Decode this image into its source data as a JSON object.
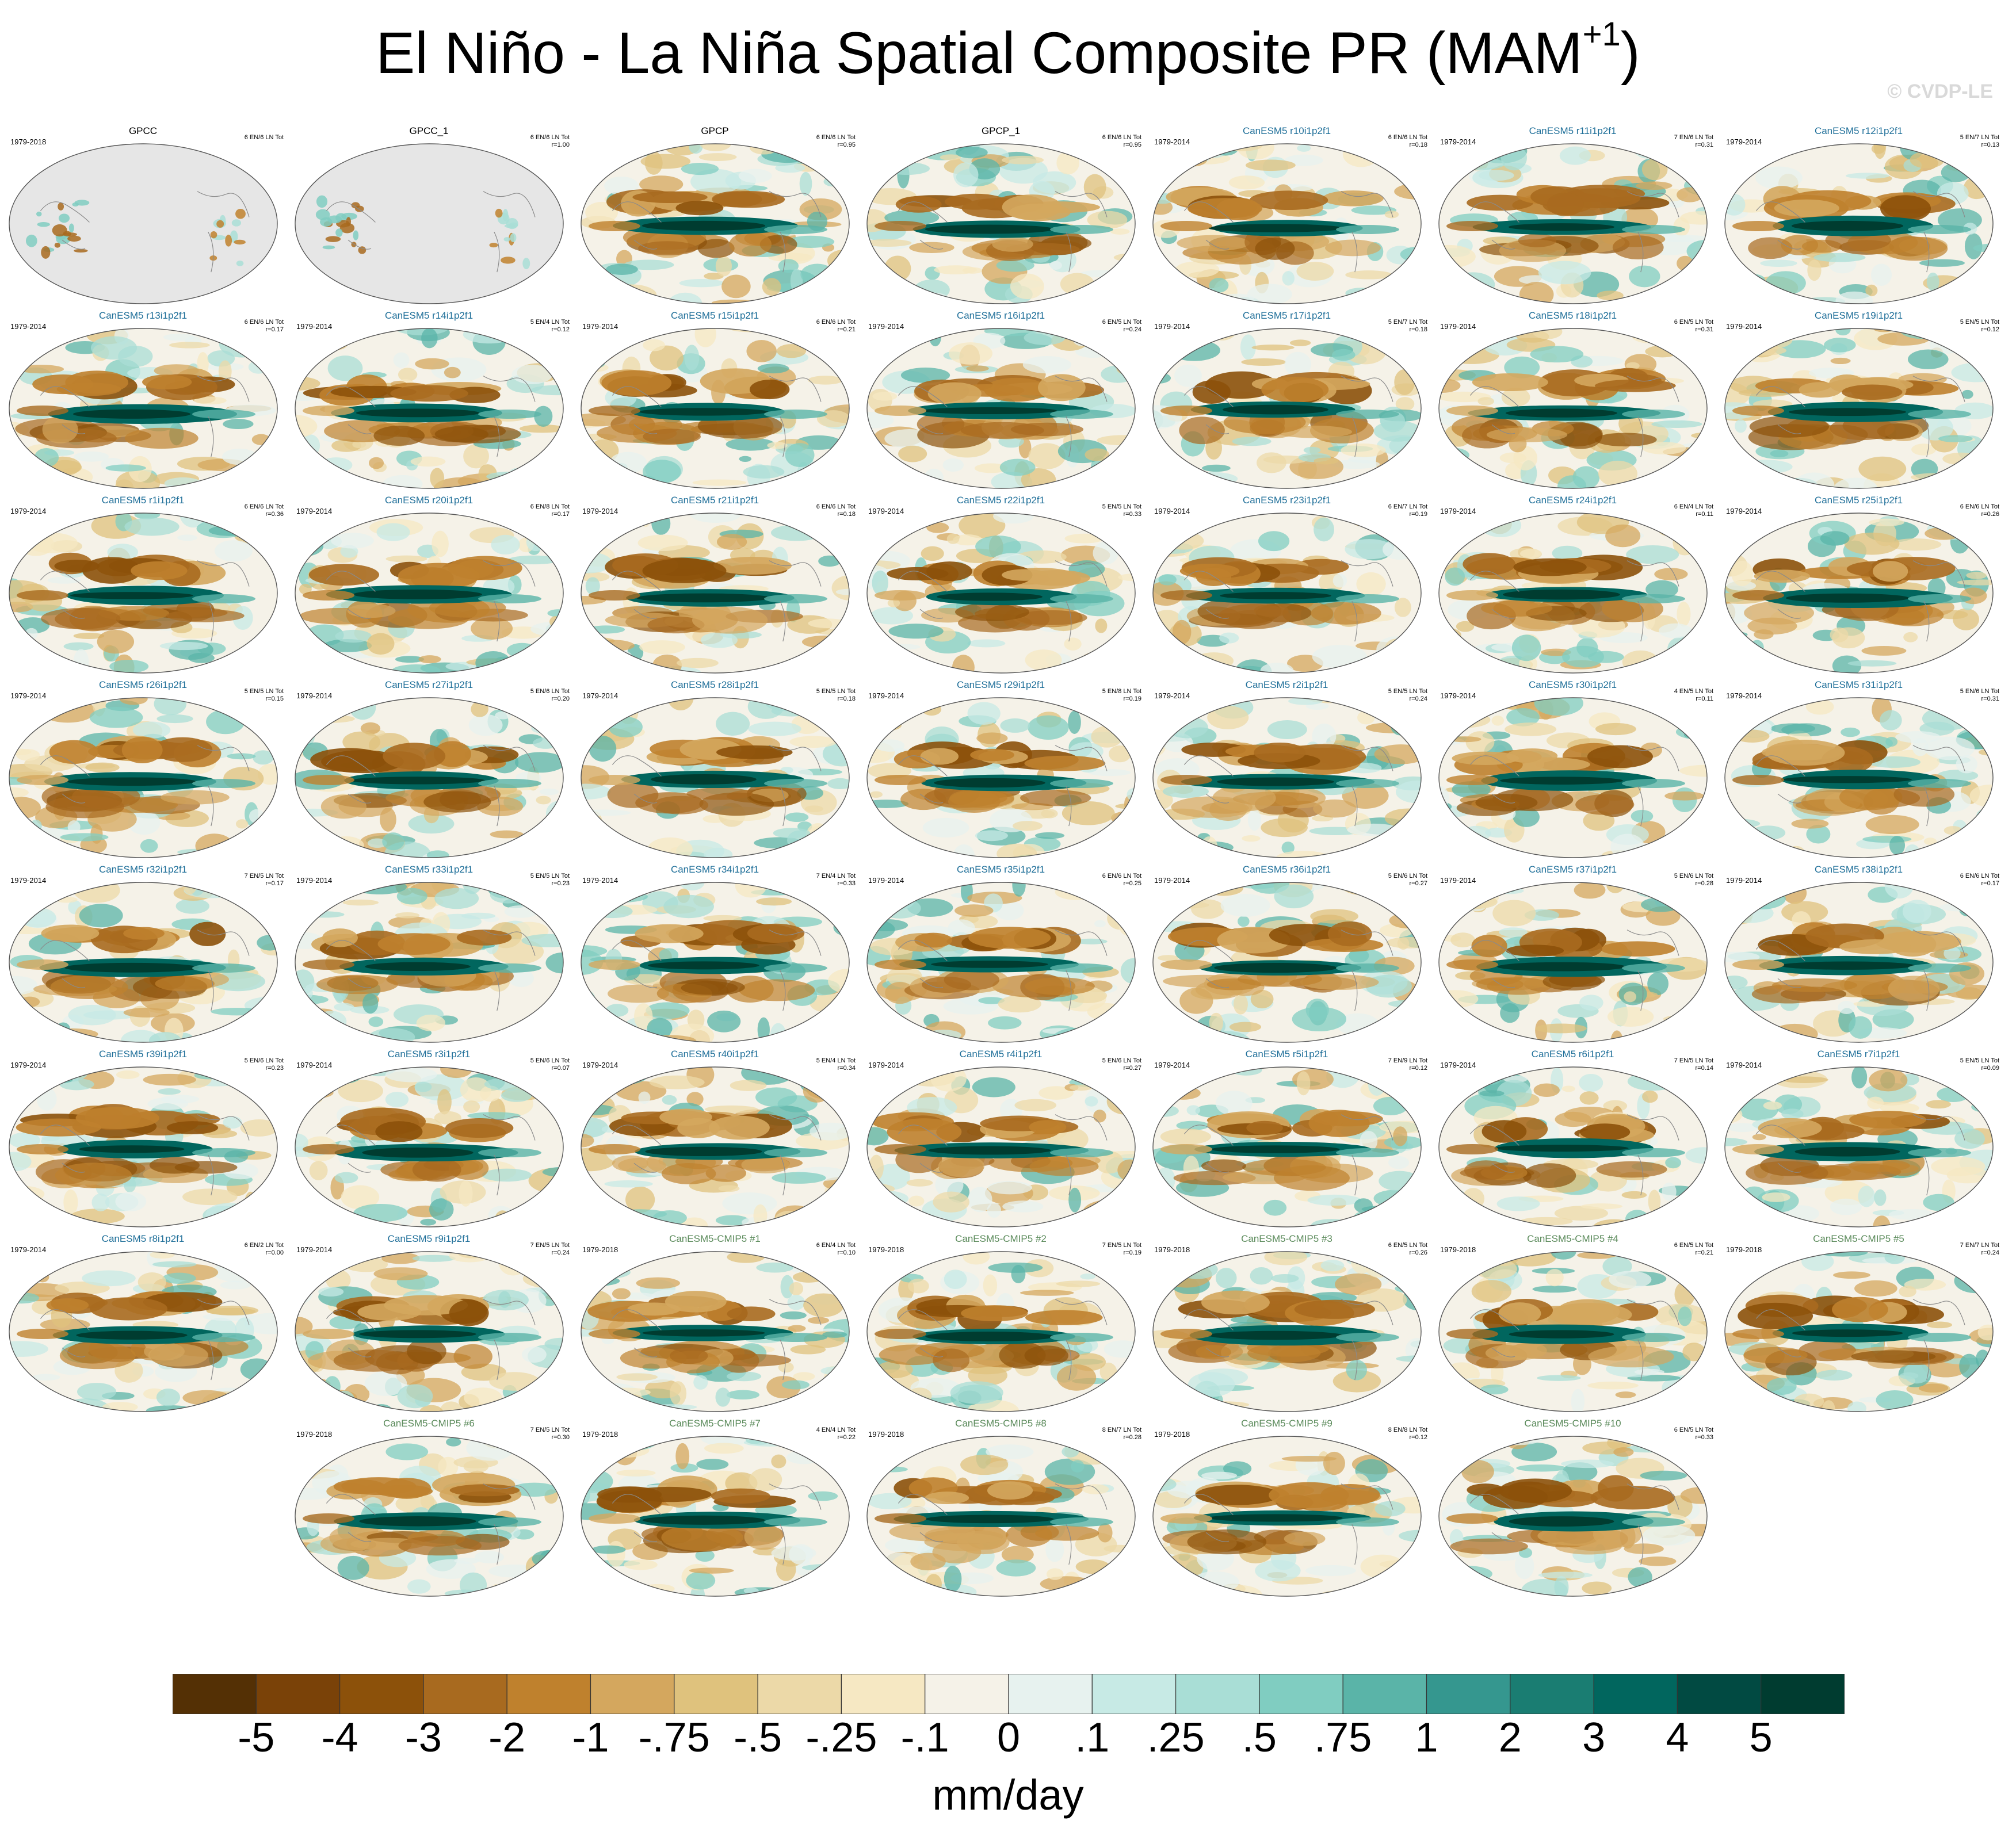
{
  "figure": {
    "title_main": "El Niño - La Niña Spatial Composite PR (MAM",
    "title_sup": "+1",
    "title_end": ")",
    "watermark": "© CVDP-LE"
  },
  "colors": {
    "obs_title": "#000000",
    "canesm5_title": "#1f6f99",
    "cmip5_title": "#5a8a5a",
    "land_mask": "#e6e6e6",
    "palette": [
      "#543005",
      "#7a4208",
      "#8c510a",
      "#a86a1f",
      "#bf812d",
      "#d4a75e",
      "#dfc27d",
      "#ecd9a8",
      "#f6e8c3",
      "#f5f2e8",
      "#e7f2ef",
      "#c7eae5",
      "#a9ded6",
      "#80cdc1",
      "#5ab4a8",
      "#35978f",
      "#1a7d72",
      "#01665e",
      "#014a42",
      "#003c30"
    ]
  },
  "chart_data": {
    "type": "heatmap",
    "description_units": "mm/day",
    "colorbar": {
      "label": "mm/day",
      "levels": [
        "-5",
        "-4",
        "-3",
        "-2",
        "-1",
        "-.75",
        "-.5",
        "-.25",
        "-.1",
        "0",
        ".1",
        ".25",
        ".5",
        ".75",
        "1",
        "2",
        "3",
        "4",
        "5"
      ],
      "level_values": [
        -5,
        -4,
        -3,
        -2,
        -1,
        -0.75,
        -0.5,
        -0.25,
        -0.1,
        0,
        0.1,
        0.25,
        0.5,
        0.75,
        1,
        2,
        3,
        4,
        5
      ]
    },
    "panels": [
      {
        "title": "GPCC",
        "kind": "obs",
        "years": "1979-2018",
        "stats": "6 EN/6 LN Tot",
        "r": "",
        "masked": true
      },
      {
        "title": "GPCC_1",
        "kind": "obs",
        "years": "",
        "stats": "6 EN/6 LN Tot",
        "r": "r=1.00",
        "masked": true
      },
      {
        "title": "GPCP",
        "kind": "obs",
        "years": "",
        "stats": "6 EN/6 LN Tot",
        "r": "r=0.95",
        "masked": false
      },
      {
        "title": "GPCP_1",
        "kind": "obs",
        "years": "",
        "stats": "6 EN/6 LN Tot",
        "r": "r=0.95",
        "masked": false
      },
      {
        "title": "CanESM5 r10i1p2f1",
        "kind": "canesm5",
        "years": "1979-2014",
        "stats": "6 EN/6 LN Tot",
        "r": "r=0.18"
      },
      {
        "title": "CanESM5 r11i1p2f1",
        "kind": "canesm5",
        "years": "1979-2014",
        "stats": "7 EN/6 LN Tot",
        "r": "r=0.31"
      },
      {
        "title": "CanESM5 r12i1p2f1",
        "kind": "canesm5",
        "years": "1979-2014",
        "stats": "5 EN/7 LN Tot",
        "r": "r=0.13"
      },
      {
        "title": "CanESM5 r13i1p2f1",
        "kind": "canesm5",
        "years": "1979-2014",
        "stats": "6 EN/6 LN Tot",
        "r": "r=0.17"
      },
      {
        "title": "CanESM5 r14i1p2f1",
        "kind": "canesm5",
        "years": "1979-2014",
        "stats": "5 EN/4 LN Tot",
        "r": "r=0.12"
      },
      {
        "title": "CanESM5 r15i1p2f1",
        "kind": "canesm5",
        "years": "1979-2014",
        "stats": "6 EN/6 LN Tot",
        "r": "r=0.21"
      },
      {
        "title": "CanESM5 r16i1p2f1",
        "kind": "canesm5",
        "years": "1979-2014",
        "stats": "6 EN/5 LN Tot",
        "r": "r=0.24"
      },
      {
        "title": "CanESM5 r17i1p2f1",
        "kind": "canesm5",
        "years": "1979-2014",
        "stats": "5 EN/7 LN Tot",
        "r": "r=0.18"
      },
      {
        "title": "CanESM5 r18i1p2f1",
        "kind": "canesm5",
        "years": "1979-2014",
        "stats": "6 EN/5 LN Tot",
        "r": "r=0.31"
      },
      {
        "title": "CanESM5 r19i1p2f1",
        "kind": "canesm5",
        "years": "1979-2014",
        "stats": "5 EN/5 LN Tot",
        "r": "r=0.12"
      },
      {
        "title": "CanESM5 r1i1p2f1",
        "kind": "canesm5",
        "years": "1979-2014",
        "stats": "6 EN/6 LN Tot",
        "r": "r=0.36"
      },
      {
        "title": "CanESM5 r20i1p2f1",
        "kind": "canesm5",
        "years": "1979-2014",
        "stats": "6 EN/8 LN Tot",
        "r": "r=0.17"
      },
      {
        "title": "CanESM5 r21i1p2f1",
        "kind": "canesm5",
        "years": "1979-2014",
        "stats": "6 EN/6 LN Tot",
        "r": "r=0.18"
      },
      {
        "title": "CanESM5 r22i1p2f1",
        "kind": "canesm5",
        "years": "1979-2014",
        "stats": "5 EN/5 LN Tot",
        "r": "r=0.33"
      },
      {
        "title": "CanESM5 r23i1p2f1",
        "kind": "canesm5",
        "years": "1979-2014",
        "stats": "6 EN/7 LN Tot",
        "r": "r=0.19"
      },
      {
        "title": "CanESM5 r24i1p2f1",
        "kind": "canesm5",
        "years": "1979-2014",
        "stats": "6 EN/4 LN Tot",
        "r": "r=0.11"
      },
      {
        "title": "CanESM5 r25i1p2f1",
        "kind": "canesm5",
        "years": "1979-2014",
        "stats": "6 EN/6 LN Tot",
        "r": "r=0.26"
      },
      {
        "title": "CanESM5 r26i1p2f1",
        "kind": "canesm5",
        "years": "1979-2014",
        "stats": "5 EN/5 LN Tot",
        "r": "r=0.15"
      },
      {
        "title": "CanESM5 r27i1p2f1",
        "kind": "canesm5",
        "years": "1979-2014",
        "stats": "5 EN/6 LN Tot",
        "r": "r=0.20"
      },
      {
        "title": "CanESM5 r28i1p2f1",
        "kind": "canesm5",
        "years": "1979-2014",
        "stats": "5 EN/5 LN Tot",
        "r": "r=0.18"
      },
      {
        "title": "CanESM5 r29i1p2f1",
        "kind": "canesm5",
        "years": "1979-2014",
        "stats": "5 EN/8 LN Tot",
        "r": "r=0.19"
      },
      {
        "title": "CanESM5 r2i1p2f1",
        "kind": "canesm5",
        "years": "1979-2014",
        "stats": "5 EN/5 LN Tot",
        "r": "r=0.24"
      },
      {
        "title": "CanESM5 r30i1p2f1",
        "kind": "canesm5",
        "years": "1979-2014",
        "stats": "4 EN/5 LN Tot",
        "r": "r=0.11"
      },
      {
        "title": "CanESM5 r31i1p2f1",
        "kind": "canesm5",
        "years": "1979-2014",
        "stats": "5 EN/6 LN Tot",
        "r": "r=0.31"
      },
      {
        "title": "CanESM5 r32i1p2f1",
        "kind": "canesm5",
        "years": "1979-2014",
        "stats": "7 EN/5 LN Tot",
        "r": "r=0.17"
      },
      {
        "title": "CanESM5 r33i1p2f1",
        "kind": "canesm5",
        "years": "1979-2014",
        "stats": "5 EN/5 LN Tot",
        "r": "r=0.23"
      },
      {
        "title": "CanESM5 r34i1p2f1",
        "kind": "canesm5",
        "years": "1979-2014",
        "stats": "7 EN/4 LN Tot",
        "r": "r=0.33"
      },
      {
        "title": "CanESM5 r35i1p2f1",
        "kind": "canesm5",
        "years": "1979-2014",
        "stats": "6 EN/6 LN Tot",
        "r": "r=0.25"
      },
      {
        "title": "CanESM5 r36i1p2f1",
        "kind": "canesm5",
        "years": "1979-2014",
        "stats": "5 EN/6 LN Tot",
        "r": "r=0.27"
      },
      {
        "title": "CanESM5 r37i1p2f1",
        "kind": "canesm5",
        "years": "1979-2014",
        "stats": "5 EN/6 LN Tot",
        "r": "r=0.28"
      },
      {
        "title": "CanESM5 r38i1p2f1",
        "kind": "canesm5",
        "years": "1979-2014",
        "stats": "6 EN/6 LN Tot",
        "r": "r=0.17"
      },
      {
        "title": "CanESM5 r39i1p2f1",
        "kind": "canesm5",
        "years": "1979-2014",
        "stats": "5 EN/6 LN Tot",
        "r": "r=0.23"
      },
      {
        "title": "CanESM5 r3i1p2f1",
        "kind": "canesm5",
        "years": "1979-2014",
        "stats": "5 EN/6 LN Tot",
        "r": "r=0.07"
      },
      {
        "title": "CanESM5 r40i1p2f1",
        "kind": "canesm5",
        "years": "1979-2014",
        "stats": "5 EN/4 LN Tot",
        "r": "r=0.34"
      },
      {
        "title": "CanESM5 r4i1p2f1",
        "kind": "canesm5",
        "years": "1979-2014",
        "stats": "5 EN/6 LN Tot",
        "r": "r=0.27"
      },
      {
        "title": "CanESM5 r5i1p2f1",
        "kind": "canesm5",
        "years": "1979-2014",
        "stats": "7 EN/9 LN Tot",
        "r": "r=0.12"
      },
      {
        "title": "CanESM5 r6i1p2f1",
        "kind": "canesm5",
        "years": "1979-2014",
        "stats": "7 EN/5 LN Tot",
        "r": "r=0.14"
      },
      {
        "title": "CanESM5 r7i1p2f1",
        "kind": "canesm5",
        "years": "1979-2014",
        "stats": "5 EN/5 LN Tot",
        "r": "r=0.09"
      },
      {
        "title": "CanESM5 r8i1p2f1",
        "kind": "canesm5",
        "years": "1979-2014",
        "stats": "6 EN/2 LN Tot",
        "r": "r=0.00"
      },
      {
        "title": "CanESM5 r9i1p2f1",
        "kind": "canesm5",
        "years": "1979-2014",
        "stats": "7 EN/5 LN Tot",
        "r": "r=0.24"
      },
      {
        "title": "CanESM5-CMIP5 #1",
        "kind": "cmip5",
        "years": "1979-2018",
        "stats": "6 EN/4 LN Tot",
        "r": "r=0.10"
      },
      {
        "title": "CanESM5-CMIP5 #2",
        "kind": "cmip5",
        "years": "1979-2018",
        "stats": "7 EN/5 LN Tot",
        "r": "r=0.19"
      },
      {
        "title": "CanESM5-CMIP5 #3",
        "kind": "cmip5",
        "years": "1979-2018",
        "stats": "6 EN/5 LN Tot",
        "r": "r=0.26"
      },
      {
        "title": "CanESM5-CMIP5 #4",
        "kind": "cmip5",
        "years": "1979-2018",
        "stats": "6 EN/5 LN Tot",
        "r": "r=0.21"
      },
      {
        "title": "CanESM5-CMIP5 #5",
        "kind": "cmip5",
        "years": "1979-2018",
        "stats": "7 EN/7 LN Tot",
        "r": "r=0.24"
      },
      {
        "title": "CanESM5-CMIP5 #6",
        "kind": "cmip5",
        "years": "1979-2018",
        "stats": "7 EN/5 LN Tot",
        "r": "r=0.30"
      },
      {
        "title": "CanESM5-CMIP5 #7",
        "kind": "cmip5",
        "years": "1979-2018",
        "stats": "4 EN/4 LN Tot",
        "r": "r=0.22"
      },
      {
        "title": "CanESM5-CMIP5 #8",
        "kind": "cmip5",
        "years": "1979-2018",
        "stats": "8 EN/7 LN Tot",
        "r": "r=0.28"
      },
      {
        "title": "CanESM5-CMIP5 #9",
        "kind": "cmip5",
        "years": "1979-2018",
        "stats": "8 EN/8 LN Tot",
        "r": "r=0.12"
      },
      {
        "title": "CanESM5-CMIP5 #10",
        "kind": "cmip5",
        "years": "",
        "stats": "6 EN/5 LN Tot",
        "r": "r=0.33"
      }
    ]
  }
}
